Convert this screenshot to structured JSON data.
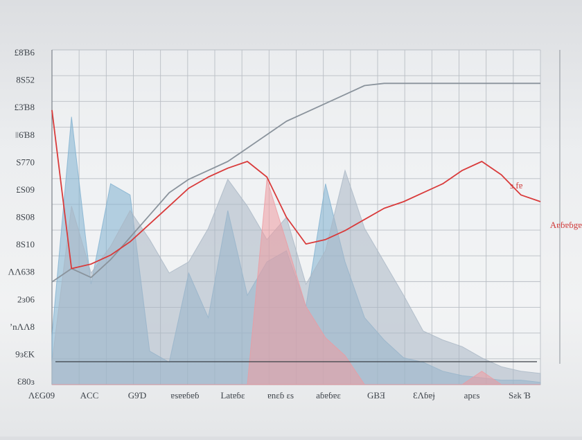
{
  "chart_data": {
    "type": "area",
    "title": "",
    "xlabel": "",
    "ylabel": "",
    "grid": true,
    "y_tick_labels": [
      "£8Ɓ6",
      "8S52",
      "£3Ɓ8",
      "ǀǀ6Ɓ8",
      "S770",
      "£S09",
      "8S08",
      "8S10",
      "ɅɅ638",
      "2ɜ06",
      "ʼnɅɅ8",
      "9ɜƐK",
      "Ɛ80ɜ"
    ],
    "x_tick_labels": [
      "ɅƐG09",
      "ACC",
      "G9Ɗ",
      "ɐsɐɐɓɐɓ",
      "Latɐɓɛ",
      "ɐnɛɓ ɛs",
      "aɓɐɓɐɛ",
      "GBƎ",
      "ƐɅɓɐɉ",
      "apɛs",
      "Sƨk Ɓ"
    ],
    "annotations": [
      {
        "text": "ɜ fɐ",
        "color": "#cf3a3a"
      },
      {
        "text": "Aɐɓɐɓgɐ",
        "color": "#cf3a3a"
      }
    ],
    "x": [
      0,
      4,
      8,
      12,
      16,
      20,
      24,
      28,
      32,
      36,
      40,
      44,
      48,
      52,
      56,
      60,
      64,
      68,
      72,
      76,
      80,
      84,
      88,
      92,
      96,
      100
    ],
    "series": [
      {
        "kind": "area",
        "color": "#7fb0cf",
        "values": [
          2.2,
          12,
          4.5,
          9.0,
          8.5,
          1.5,
          1.0,
          5.0,
          3.0,
          7.8,
          4.0,
          5.5,
          6.0,
          3.5,
          9.0,
          5.5,
          3.0,
          2.0,
          1.2,
          1.0,
          0.6,
          0.4,
          0.3,
          0.2,
          0.2,
          0.1
        ]
      },
      {
        "kind": "area",
        "color": "#a9b7c4",
        "values": [
          1.0,
          8.0,
          5.0,
          6.2,
          7.8,
          6.5,
          5.0,
          5.5,
          7.0,
          9.2,
          8.0,
          6.5,
          7.5,
          4.5,
          6.0,
          9.6,
          7.0,
          5.5,
          4.0,
          2.4,
          2.0,
          1.7,
          1.2,
          0.8,
          0.6,
          0.5
        ]
      },
      {
        "kind": "area",
        "color": "#ee9aa0",
        "values": [
          0,
          0,
          0,
          0,
          0,
          0,
          0,
          0,
          0,
          0,
          0,
          9.2,
          6.4,
          3.5,
          2.1,
          1.3,
          0,
          0,
          0,
          0,
          0,
          0,
          0.6,
          0,
          0,
          0
        ]
      },
      {
        "kind": "line",
        "color": "#8a939c",
        "values": [
          4.6,
          5.2,
          4.8,
          5.6,
          6.6,
          7.6,
          8.6,
          9.2,
          9.6,
          10.0,
          10.6,
          11.2,
          11.8,
          12.2,
          12.6,
          13.0,
          13.4,
          13.5,
          13.5,
          13.5,
          13.5,
          13.5,
          13.5,
          13.5,
          13.5,
          13.5
        ]
      },
      {
        "kind": "line",
        "color": "#d93a3a",
        "values": [
          12.3,
          5.2,
          5.4,
          5.8,
          6.4,
          7.2,
          8.0,
          8.8,
          9.3,
          9.7,
          10.0,
          9.3,
          7.5,
          6.3,
          6.5,
          6.9,
          7.4,
          7.9,
          8.2,
          8.6,
          9.0,
          9.6,
          10.0,
          9.4,
          8.5,
          8.2
        ]
      }
    ],
    "ylim": [
      0,
      15
    ],
    "xlim": [
      0,
      100
    ]
  }
}
